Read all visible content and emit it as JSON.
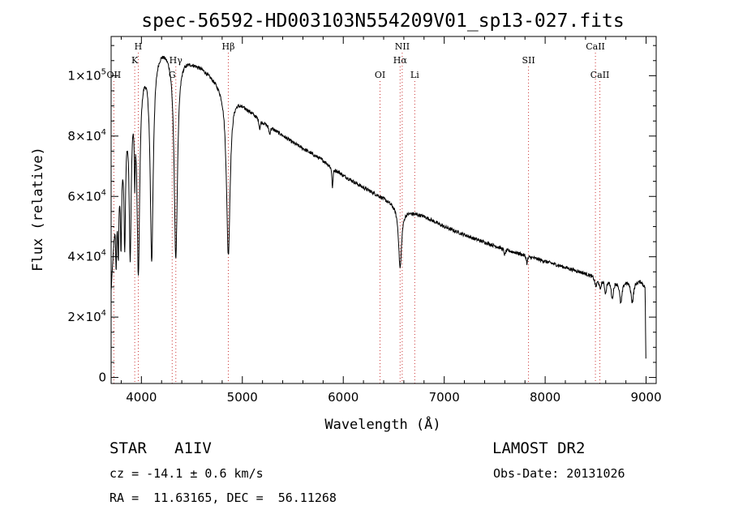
{
  "chart_data": {
    "type": "line",
    "title": "spec-56592-HD003103N554209V01_sp13-027.fits",
    "xlabel": "Wavelength (Å)",
    "ylabel": "Flux (relative)",
    "xlim": [
      3700,
      9100
    ],
    "ylim": [
      -2000,
      113000
    ],
    "xticks": [
      4000,
      5000,
      6000,
      7000,
      8000,
      9000
    ],
    "yticks": [
      {
        "value": 0,
        "mant": "0",
        "exp": ""
      },
      {
        "value": 20000,
        "mant": "2×10",
        "exp": "4"
      },
      {
        "value": 40000,
        "mant": "4×10",
        "exp": "4"
      },
      {
        "value": 60000,
        "mant": "6×10",
        "exp": "4"
      },
      {
        "value": 80000,
        "mant": "8×10",
        "exp": "4"
      },
      {
        "value": 100000,
        "mant": "1×10",
        "exp": "5"
      }
    ],
    "grid": false,
    "lines": [
      {
        "label": "OII",
        "wave": 3727,
        "row": 3
      },
      {
        "label": "K",
        "wave": 3934,
        "row": 2
      },
      {
        "label": "H",
        "wave": 3969,
        "row": 1
      },
      {
        "label": "G",
        "wave": 4305,
        "row": 3
      },
      {
        "label": "Hγ",
        "wave": 4341,
        "row": 2
      },
      {
        "label": "Hβ",
        "wave": 4861,
        "row": 1
      },
      {
        "label": "OI",
        "wave": 6364,
        "row": 3
      },
      {
        "label": "Hα",
        "wave": 6563,
        "row": 2
      },
      {
        "label": "NII",
        "wave": 6584,
        "row": 1
      },
      {
        "label": "Li",
        "wave": 6708,
        "row": 3
      },
      {
        "label": "SII",
        "wave": 7835,
        "row": 2
      },
      {
        "label": "CaII",
        "wave": 8498,
        "row": 1
      },
      {
        "label": "CaII",
        "wave": 8542,
        "row": 3
      }
    ],
    "continuum": [
      [
        3700,
        30000
      ],
      [
        3740,
        55000
      ],
      [
        3800,
        75000
      ],
      [
        3850,
        88000
      ],
      [
        3900,
        95000
      ],
      [
        3950,
        100000
      ],
      [
        4000,
        104000
      ],
      [
        4100,
        108000
      ],
      [
        4200,
        110000
      ],
      [
        4300,
        109000
      ],
      [
        4400,
        107000
      ],
      [
        4500,
        105000
      ],
      [
        4600,
        103000
      ],
      [
        4700,
        100000
      ],
      [
        4800,
        97000
      ],
      [
        4900,
        95000
      ],
      [
        5000,
        91000
      ],
      [
        5200,
        85000
      ],
      [
        5500,
        78000
      ],
      [
        5800,
        72000
      ],
      [
        6000,
        67000
      ],
      [
        6200,
        63000
      ],
      [
        6400,
        59500
      ],
      [
        6600,
        55500
      ],
      [
        6800,
        53500
      ],
      [
        7000,
        50000
      ],
      [
        7300,
        46000
      ],
      [
        7600,
        42500
      ],
      [
        7900,
        39500
      ],
      [
        8200,
        36500
      ],
      [
        8400,
        34500
      ],
      [
        8500,
        33500
      ],
      [
        8700,
        32500
      ],
      [
        8950,
        32000
      ],
      [
        8990,
        30000
      ],
      [
        9000,
        0
      ]
    ],
    "absorptions": [
      {
        "center": 3750,
        "depth": 20000,
        "width": 6
      },
      {
        "center": 3771,
        "depth": 22000,
        "width": 6
      },
      {
        "center": 3798,
        "depth": 28000,
        "width": 7
      },
      {
        "center": 3835,
        "depth": 38000,
        "width": 9
      },
      {
        "center": 3889,
        "depth": 50000,
        "width": 12
      },
      {
        "center": 3934,
        "depth": 22000,
        "width": 5
      },
      {
        "center": 3970,
        "depth": 65000,
        "width": 16
      },
      {
        "center": 4102,
        "depth": 68000,
        "width": 18
      },
      {
        "center": 4341,
        "depth": 68000,
        "width": 20
      },
      {
        "center": 4861,
        "depth": 55000,
        "width": 22
      },
      {
        "center": 5172,
        "depth": 3000,
        "width": 8
      },
      {
        "center": 5270,
        "depth": 2500,
        "width": 8
      },
      {
        "center": 5893,
        "depth": 7000,
        "width": 6
      },
      {
        "center": 6563,
        "depth": 20000,
        "width": 18
      },
      {
        "center": 7600,
        "depth": 2000,
        "width": 8
      },
      {
        "center": 7820,
        "depth": 2500,
        "width": 7
      },
      {
        "center": 8502,
        "depth": 3000,
        "width": 12
      },
      {
        "center": 8545,
        "depth": 3500,
        "width": 12
      },
      {
        "center": 8598,
        "depth": 4500,
        "width": 12
      },
      {
        "center": 8665,
        "depth": 6000,
        "width": 14
      },
      {
        "center": 8750,
        "depth": 7500,
        "width": 15
      },
      {
        "center": 8863,
        "depth": 7000,
        "width": 16
      }
    ]
  },
  "info": {
    "class_label": "STAR",
    "subclass": "A1IV",
    "survey": "LAMOST DR2",
    "cz": "cz = -14.1 ± 0.6 km/s",
    "obs_date": "Obs-Date: 20131026",
    "coords": "RA =  11.63165, DEC =  56.11268"
  }
}
